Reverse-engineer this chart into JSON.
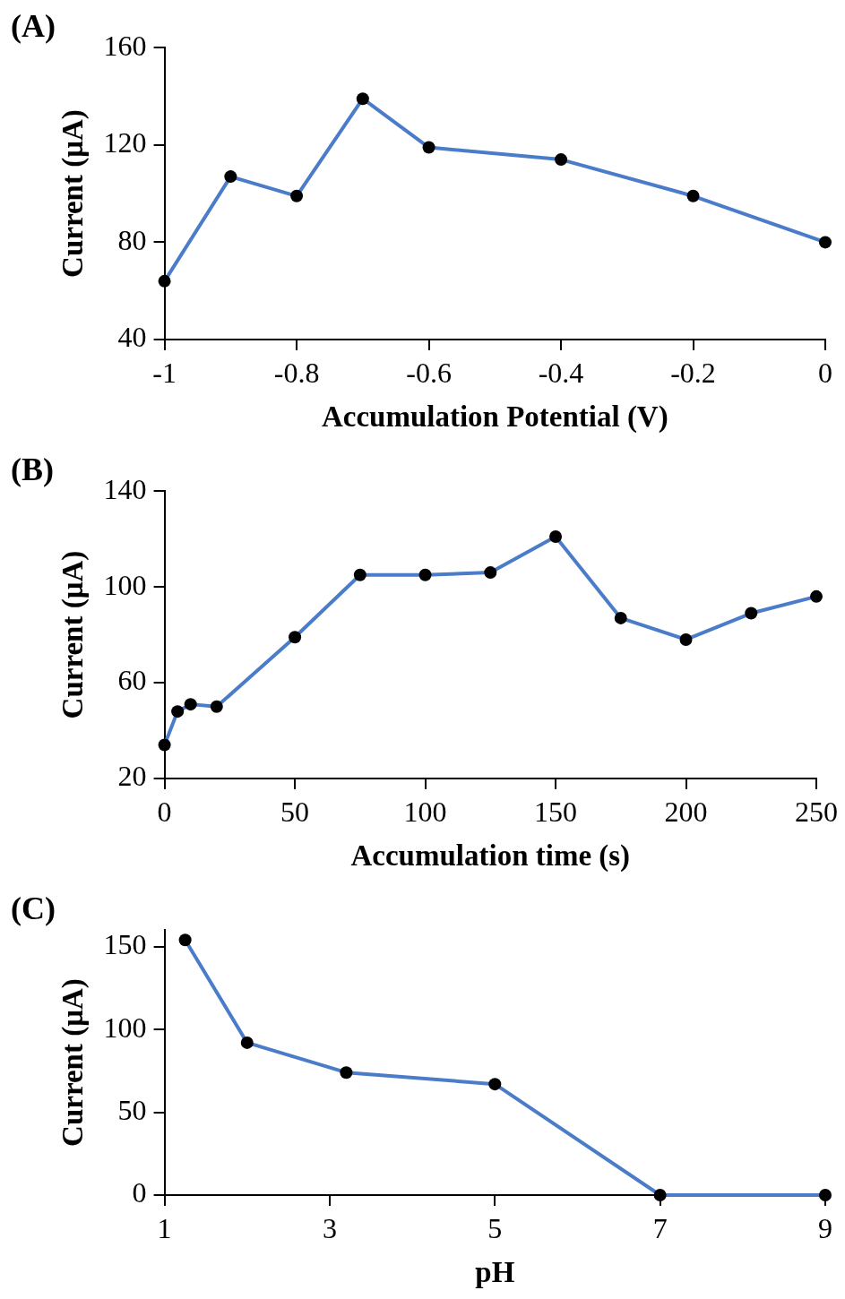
{
  "chart_data": [
    {
      "type": "line",
      "title": "(A)",
      "xlabel": "Accumulation Potential (V)",
      "ylabel": "Current (μA)",
      "x": [
        -1,
        -0.9,
        -0.8,
        -0.7,
        -0.6,
        -0.4,
        -0.2,
        0
      ],
      "series": [
        {
          "color": "#4a7cc9",
          "values": [
            64,
            107,
            99,
            139,
            119,
            114,
            99,
            80
          ]
        }
      ],
      "xlim": [
        -1,
        0
      ],
      "xticks": [
        -1,
        -0.8,
        -0.6,
        -0.4,
        -0.2,
        0
      ],
      "ylim": [
        40,
        160
      ],
      "yticks": [
        40,
        80,
        120,
        160
      ],
      "grid": false,
      "legend": false,
      "marker": "circle",
      "line_style": "solid"
    },
    {
      "type": "line",
      "title": "(B)",
      "xlabel": "Accumulation time (s)",
      "ylabel": "Current (μA)",
      "x": [
        0,
        5,
        10,
        20,
        50,
        75,
        100,
        125,
        150,
        175,
        200,
        225,
        250
      ],
      "series": [
        {
          "color": "#4a7cc9",
          "values": [
            34,
            48,
            51,
            50,
            79,
            105,
            105,
            106,
            121,
            87,
            78,
            89,
            96
          ]
        }
      ],
      "xlim": [
        0,
        250
      ],
      "xticks": [
        0,
        50,
        100,
        150,
        200,
        250
      ],
      "ylim": [
        20,
        140
      ],
      "yticks": [
        20,
        60,
        100,
        140
      ],
      "grid": false,
      "legend": false,
      "marker": "circle",
      "line_style": "solid"
    },
    {
      "type": "line",
      "title": "(C)",
      "xlabel": "pH",
      "ylabel": "Current (μA)",
      "x": [
        1.25,
        2,
        3.2,
        5,
        7,
        9
      ],
      "series": [
        {
          "color": "#4a7cc9",
          "values": [
            154,
            92,
            74,
            67,
            0,
            0
          ]
        }
      ],
      "xlim": [
        1,
        9
      ],
      "xticks": [
        1,
        3,
        5,
        7,
        9
      ],
      "ylim": [
        0,
        160
      ],
      "yticks": [
        0,
        50,
        100,
        150
      ],
      "grid": false,
      "legend": false,
      "marker": "circle",
      "line_style": "solid"
    }
  ]
}
